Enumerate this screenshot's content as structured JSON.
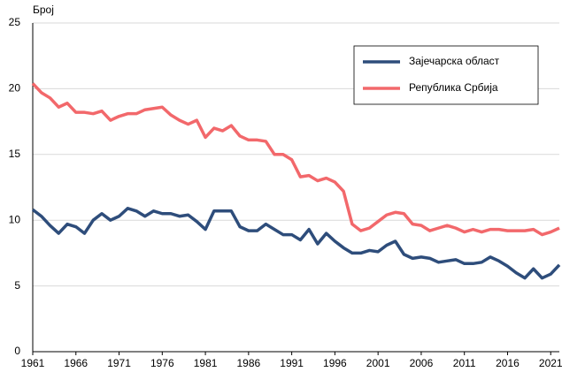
{
  "chart_data": {
    "type": "line",
    "y_label": "Број",
    "x": [
      1961,
      1962,
      1963,
      1964,
      1965,
      1966,
      1967,
      1968,
      1969,
      1970,
      1971,
      1972,
      1973,
      1974,
      1975,
      1976,
      1977,
      1978,
      1979,
      1980,
      1981,
      1982,
      1983,
      1984,
      1985,
      1986,
      1987,
      1988,
      1989,
      1990,
      1991,
      1992,
      1993,
      1994,
      1995,
      1996,
      1997,
      1998,
      1999,
      2000,
      2001,
      2002,
      2003,
      2004,
      2005,
      2006,
      2007,
      2008,
      2009,
      2010,
      2011,
      2012,
      2013,
      2014,
      2015,
      2016,
      2017,
      2018,
      2019,
      2020,
      2021,
      2022
    ],
    "series": [
      {
        "name": "Зајечарска област",
        "color": "#2e4d7b",
        "values": [
          10.8,
          10.3,
          9.6,
          9.0,
          9.7,
          9.5,
          9.0,
          10.0,
          10.5,
          10.0,
          10.3,
          10.9,
          10.7,
          10.3,
          10.7,
          10.5,
          10.5,
          10.3,
          10.4,
          9.9,
          9.3,
          10.7,
          10.7,
          10.7,
          9.5,
          9.2,
          9.2,
          9.7,
          9.3,
          8.9,
          8.9,
          8.5,
          9.3,
          8.2,
          9.0,
          8.4,
          7.9,
          7.5,
          7.5,
          7.7,
          7.6,
          8.1,
          8.4,
          7.4,
          7.1,
          7.2,
          7.1,
          6.8,
          6.9,
          7.0,
          6.7,
          6.7,
          6.8,
          7.2,
          6.9,
          6.5,
          6.0,
          5.6,
          6.3,
          5.6,
          5.9,
          6.6
        ]
      },
      {
        "name": "Република Србија",
        "color": "#f2686b",
        "values": [
          20.4,
          19.7,
          19.3,
          18.6,
          18.9,
          18.2,
          18.2,
          18.1,
          18.3,
          17.6,
          17.9,
          18.1,
          18.1,
          18.4,
          18.5,
          18.6,
          18.0,
          17.6,
          17.3,
          17.6,
          16.3,
          17.0,
          16.8,
          17.2,
          16.4,
          16.1,
          16.1,
          16.0,
          15.0,
          15.0,
          14.6,
          13.3,
          13.4,
          13.0,
          13.2,
          12.9,
          12.2,
          9.7,
          9.2,
          9.4,
          9.9,
          10.4,
          10.6,
          10.5,
          9.7,
          9.6,
          9.2,
          9.4,
          9.6,
          9.4,
          9.1,
          9.3,
          9.1,
          9.3,
          9.3,
          9.2,
          9.2,
          9.2,
          9.3,
          8.9,
          9.1,
          9.4
        ]
      }
    ],
    "xlim": [
      1961,
      2022
    ],
    "xticks": [
      1961,
      1966,
      1971,
      1976,
      1981,
      1986,
      1991,
      1996,
      2001,
      2006,
      2011,
      2016,
      2021
    ],
    "ylim": [
      0,
      25
    ],
    "yticks": [
      0,
      5,
      10,
      15,
      20,
      25
    ],
    "grid": true,
    "legend": "upper right"
  }
}
